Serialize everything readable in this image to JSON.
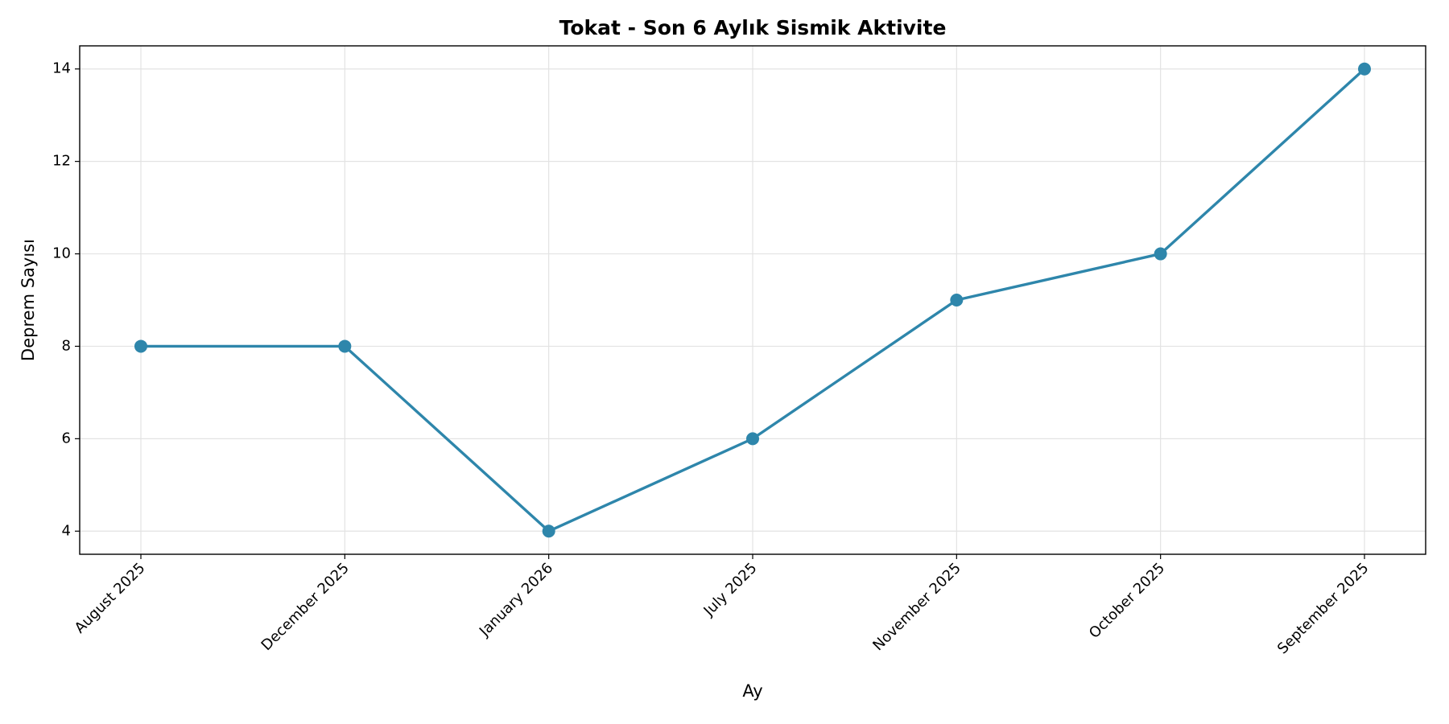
{
  "chart_data": {
    "type": "line",
    "title": "Tokat - Son 6 Aylık Sismik Aktivite",
    "x_label": "Ay",
    "y_label": "Deprem Sayısı",
    "categories": [
      "August 2025",
      "December 2025",
      "January 2026",
      "July 2025",
      "November 2025",
      "October 2025",
      "September 2025"
    ],
    "series": [
      {
        "name": "Deprem Sayısı",
        "color": "#2e86ab",
        "values": [
          8,
          8,
          4,
          6,
          9,
          10,
          14
        ]
      }
    ],
    "ylim": [
      3.5,
      14.5
    ],
    "yticks": [
      4,
      6,
      8,
      10,
      12,
      14
    ],
    "grid": true
  }
}
